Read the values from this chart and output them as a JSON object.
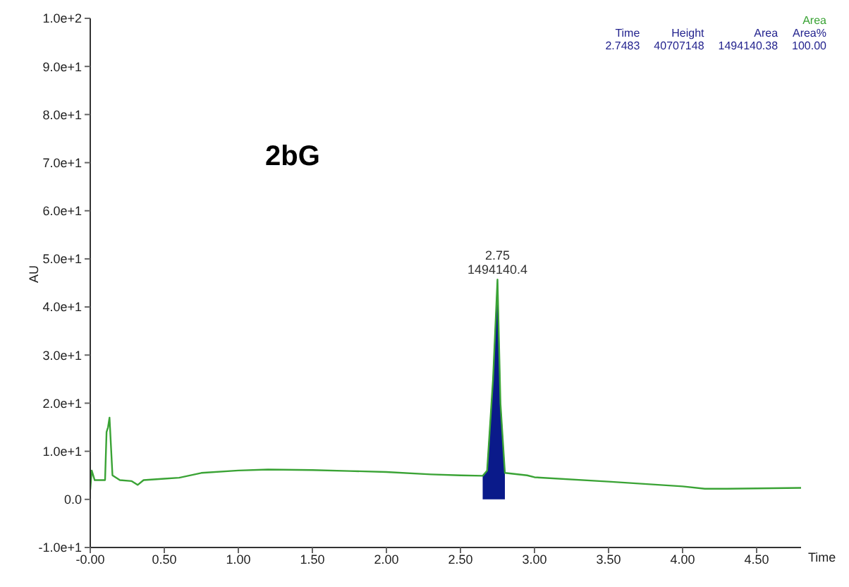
{
  "chart_data": {
    "type": "line",
    "title": "2bG",
    "xlabel": "Time",
    "ylabel": "AU",
    "xlim": [
      0,
      4.8
    ],
    "ylim": [
      -10,
      100
    ],
    "xticks": [
      {
        "value": 0,
        "label": "-0.00"
      },
      {
        "value": 0.5,
        "label": "0.50"
      },
      {
        "value": 1,
        "label": "1.00"
      },
      {
        "value": 1.5,
        "label": "1.50"
      },
      {
        "value": 2,
        "label": "2.00"
      },
      {
        "value": 2.5,
        "label": "2.50"
      },
      {
        "value": 3,
        "label": "3.00"
      },
      {
        "value": 3.5,
        "label": "3.50"
      },
      {
        "value": 4,
        "label": "4.00"
      },
      {
        "value": 4.5,
        "label": "4.50"
      }
    ],
    "yticks": [
      {
        "value": -10,
        "label": "-1.0e+1"
      },
      {
        "value": 0,
        "label": "0.0"
      },
      {
        "value": 10,
        "label": "1.0e+1"
      },
      {
        "value": 20,
        "label": "2.0e+1"
      },
      {
        "value": 30,
        "label": "3.0e+1"
      },
      {
        "value": 40,
        "label": "4.0e+1"
      },
      {
        "value": 50,
        "label": "5.0e+1"
      },
      {
        "value": 60,
        "label": "6.0e+1"
      },
      {
        "value": 70,
        "label": "7.0e+1"
      },
      {
        "value": 80,
        "label": "8.0e+1"
      },
      {
        "value": 90,
        "label": "9.0e+1"
      },
      {
        "value": 100,
        "label": "1.0e+2"
      }
    ],
    "grid": false,
    "marker": "none",
    "line_style": "solid",
    "series": [
      {
        "color": "#3aa335",
        "x": [
          0,
          0.01,
          0.03,
          0.1,
          0.11,
          0.12,
          0.13,
          0.15,
          0.2,
          0.28,
          0.32,
          0.36,
          0.5,
          0.6,
          0.75,
          1.0,
          1.2,
          1.5,
          1.75,
          2.0,
          2.3,
          2.5,
          2.65,
          2.68,
          2.72,
          2.75,
          2.77,
          2.8,
          2.95,
          3.0,
          3.5,
          4.0,
          4.15,
          4.3,
          4.8
        ],
        "values": [
          2,
          6,
          4,
          4,
          14,
          15,
          17,
          5,
          4,
          3.8,
          3,
          4,
          4.3,
          4.5,
          5.5,
          6,
          6.2,
          6.1,
          5.9,
          5.7,
          5.2,
          5,
          4.9,
          6,
          25,
          45.7,
          20,
          5.5,
          5,
          4.6,
          3.7,
          2.7,
          2.2,
          2.2,
          2.4
        ]
      },
      {
        "type": "area",
        "color": "#0a1a8a",
        "x": [
          2.65,
          2.68,
          2.72,
          2.75,
          2.77,
          2.8
        ],
        "values": [
          4.9,
          6,
          25,
          45.7,
          20,
          5.5
        ]
      }
    ],
    "annotations": [
      {
        "text": "2.75",
        "x": 2.75,
        "y": 45.7
      },
      {
        "text": "1494140.4",
        "x": 2.75,
        "y": 45.7
      },
      "Area",
      "Time",
      "Height",
      "Area",
      "Area%",
      "2.7483",
      "40707148",
      "1494140.38",
      "100.00"
    ]
  }
}
